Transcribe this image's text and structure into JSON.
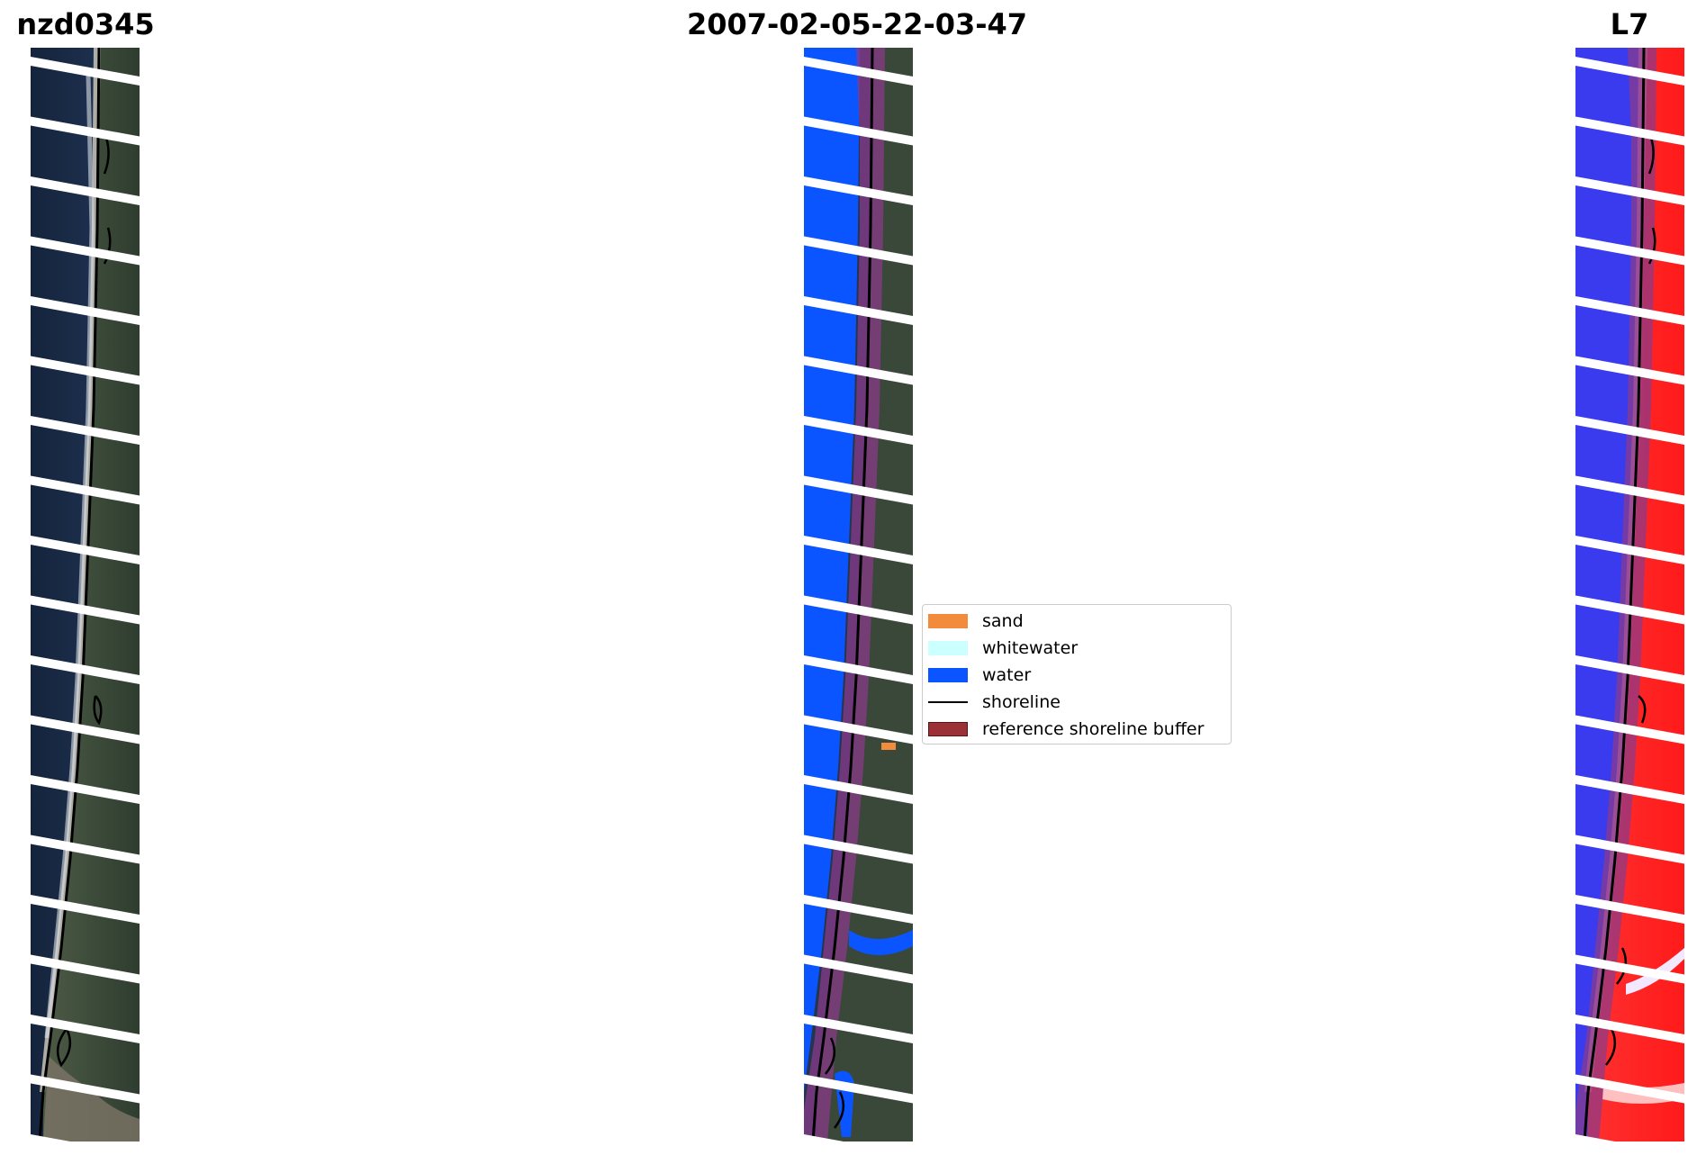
{
  "titles": {
    "site": "nzd0345",
    "date": "2007-02-05-22-03-47",
    "satellite": "L7"
  },
  "legend": {
    "items": [
      {
        "label": "sand",
        "color": "#f28c3c",
        "kind": "patch"
      },
      {
        "label": "whitewater",
        "color": "#ccffff",
        "kind": "patch"
      },
      {
        "label": "water",
        "color": "#0a55ff",
        "kind": "patch"
      },
      {
        "label": "shoreline",
        "color": "#000000",
        "kind": "line"
      },
      {
        "label": "reference shoreline buffer",
        "color": "#9b3036",
        "kind": "patch"
      }
    ]
  },
  "colors": {
    "ocean_rgb": "#1c2d47",
    "land_rgb": "#3b4a3a",
    "water_class": "#0a55ff",
    "buffer": "#8a3a8a",
    "index_water": "#3d3dee",
    "index_land": "#ff2a2a"
  }
}
